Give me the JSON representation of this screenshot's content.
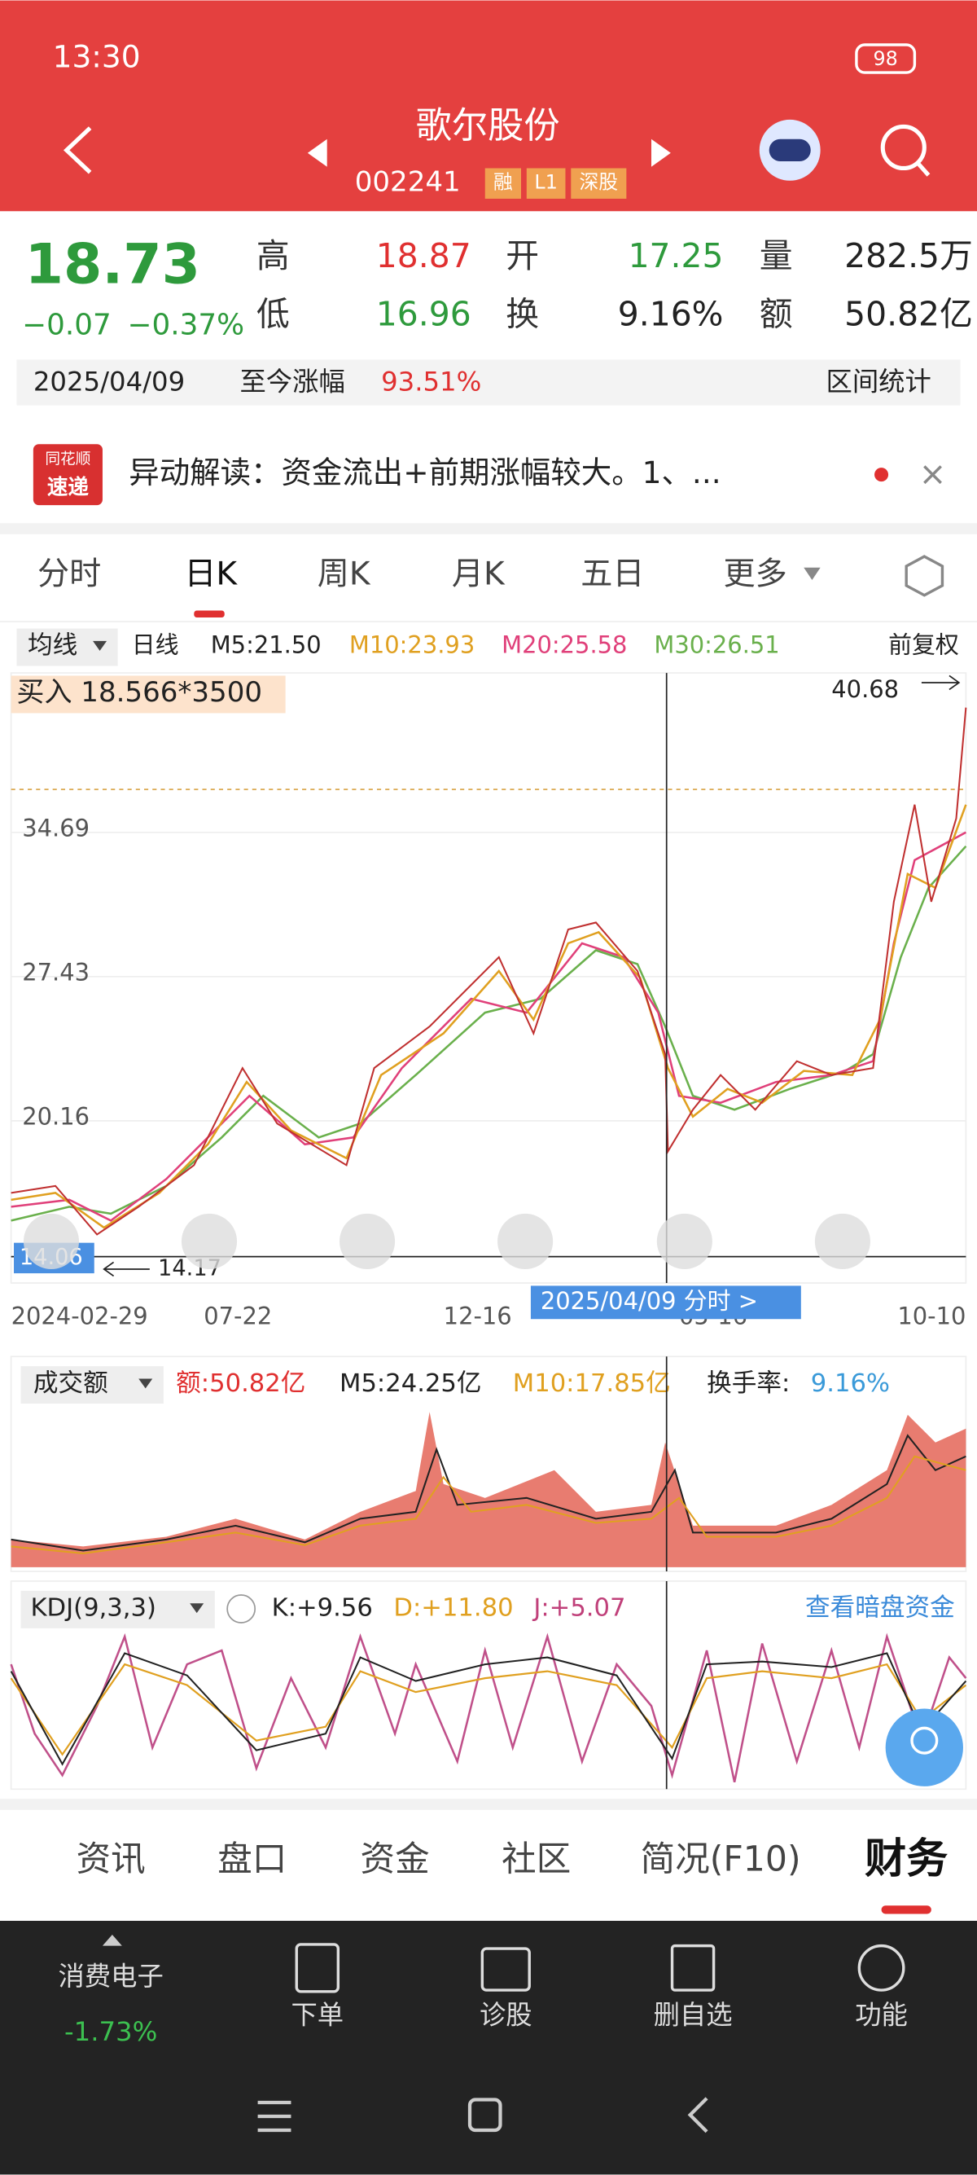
{
  "status_bar": {
    "time": "13:30",
    "battery": "98"
  },
  "header": {
    "name": "歌尔股份",
    "code": "002241",
    "tags": [
      "融",
      "L1",
      "深股"
    ]
  },
  "quote": {
    "price": "18.73",
    "change": "−0.07",
    "change_pct": "−0.37%",
    "high_label": "高",
    "high": "18.87",
    "open_label": "开",
    "open": "17.25",
    "volume_label": "量",
    "volume": "282.5万",
    "low_label": "低",
    "low": "16.96",
    "turnover_label": "换",
    "turnover": "9.16%",
    "amount_label": "额",
    "amount": "50.82亿"
  },
  "range_bar": {
    "date": "2025/04/09",
    "label": "至今涨幅",
    "value": "93.51%",
    "button": "区间统计"
  },
  "news": {
    "logo_top": "同花顺",
    "logo_bottom": "速递",
    "text": "异动解读：资金流出+前期涨幅较大。1、..."
  },
  "tabs": [
    "分时",
    "日K",
    "周K",
    "月K",
    "五日",
    "更多"
  ],
  "ma_bar": {
    "selector": "均线",
    "period": "日线",
    "m5": "M5:21.50",
    "m10": "M10:23.93",
    "m20": "M20:25.58",
    "m30": "M30:26.51",
    "adjust": "前复权"
  },
  "price_chart": {
    "trade_note": "买入 18.566*3500",
    "max_label": "40.68",
    "min_label": "14.17",
    "price_labels": [
      "34.69",
      "27.43",
      "20.16",
      "14.06"
    ],
    "dates": [
      "2024-02-29",
      "07-22",
      "12-16",
      "05-16",
      "10-10"
    ],
    "cursor_label": "2025/04/09 分时 >"
  },
  "volume_bar": {
    "selector": "成交额",
    "amount": "额:50.82亿",
    "m5": "M5:24.25亿",
    "m10": "M10:17.85亿",
    "turnover_label": "换手率:",
    "turnover": "9.16%"
  },
  "kdj_bar": {
    "selector": "KDJ(9,3,3)",
    "k": "K:+9.56",
    "d": "D:+11.80",
    "j": "J:+5.07",
    "link": "查看暗盘资金"
  },
  "bottom_tabs": [
    "资讯",
    "盘口",
    "资金",
    "社区",
    "简况(F10)",
    "财务"
  ],
  "sector": {
    "name": "消费电子",
    "change": "-1.73%"
  },
  "toolbar": [
    "下单",
    "诊股",
    "删自选",
    "功能"
  ]
}
